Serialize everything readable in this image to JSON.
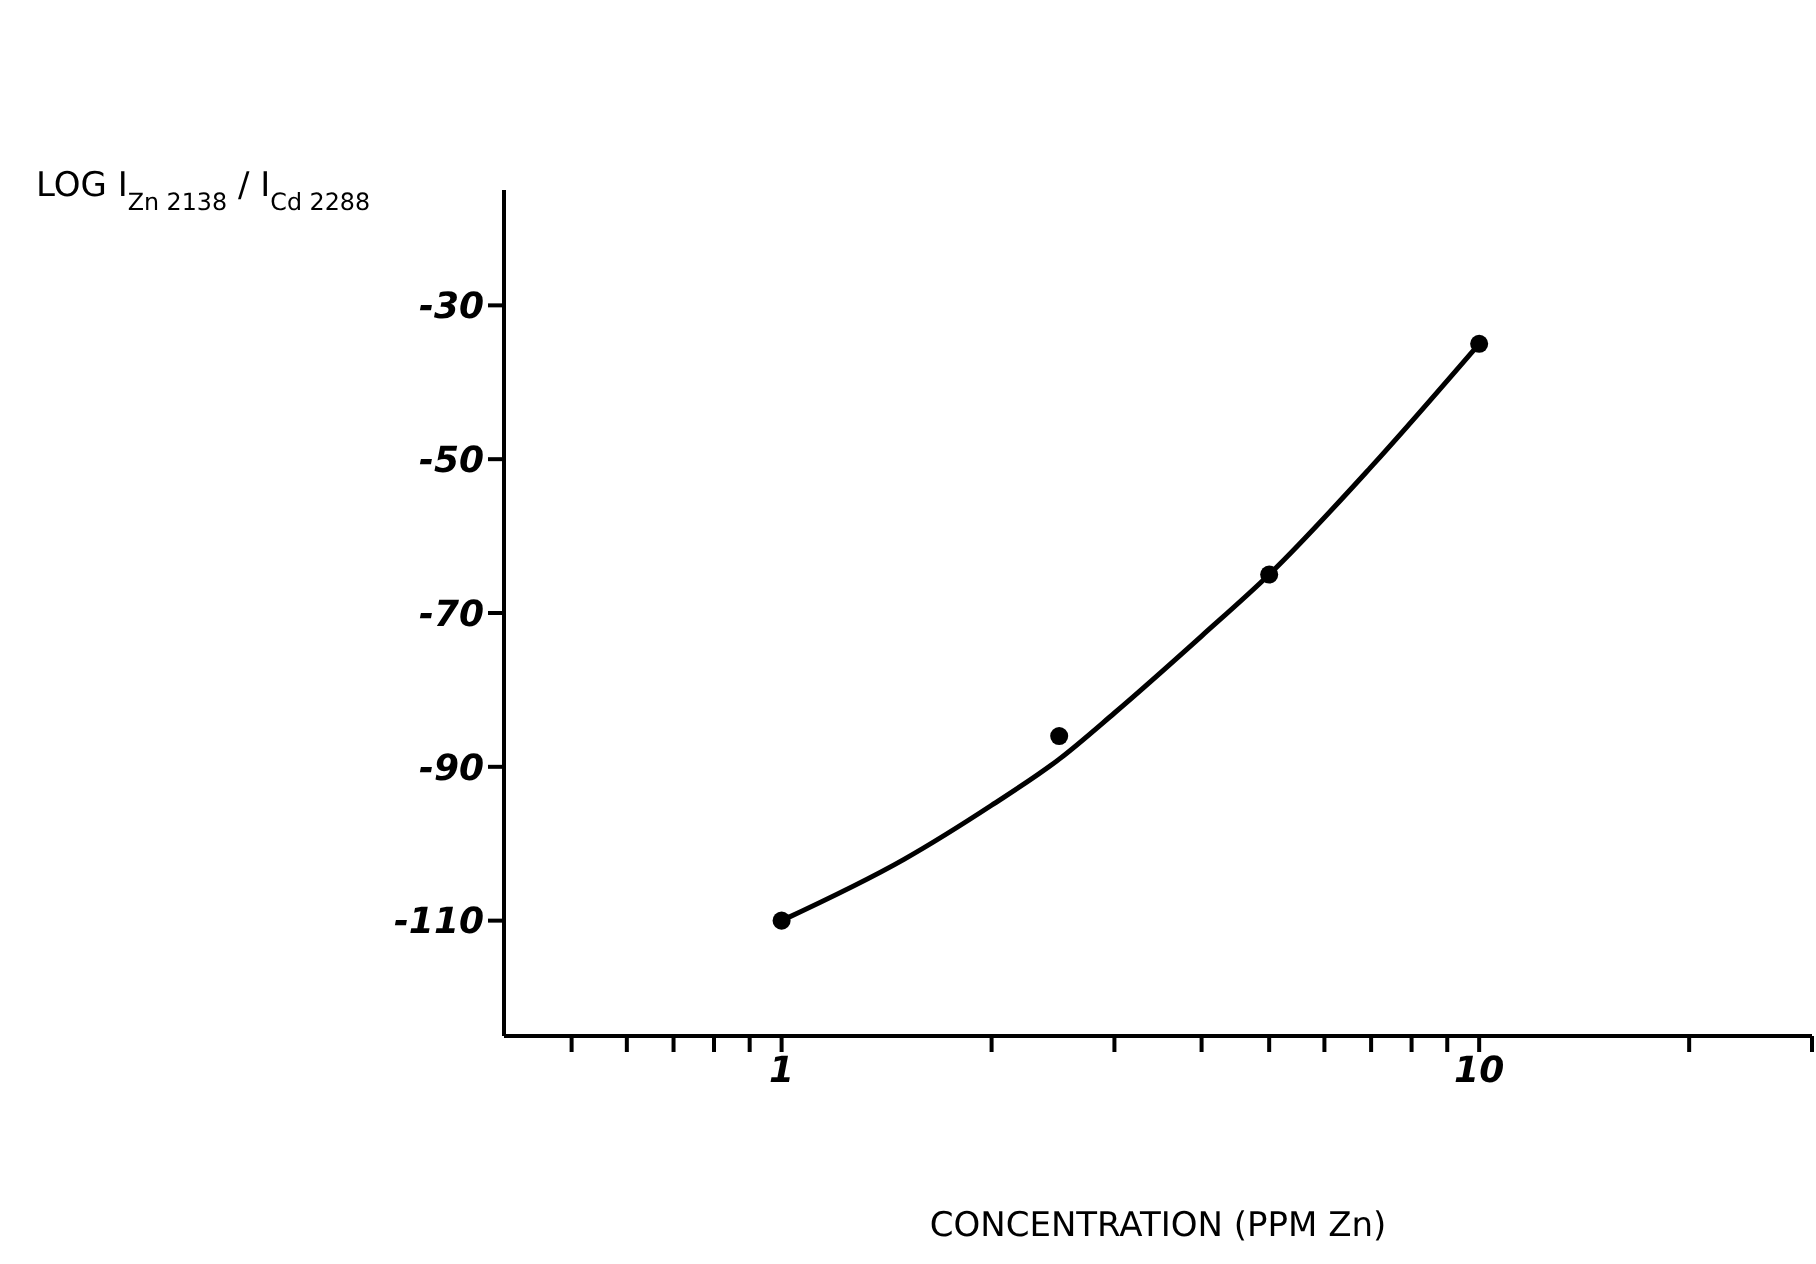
{
  "chart_data": {
    "type": "scatter",
    "xlabel": "CONCENTRATION (PPM Zn)",
    "ylabel": "LOG I$_{Zn 2138}$ / I$_{Cd 2288}$",
    "log": "x",
    "grid": false,
    "xlim": [
      0.4,
      30
    ],
    "xticks": [
      {
        "value": 0.5,
        "label": null
      },
      {
        "value": 0.6,
        "label": null
      },
      {
        "value": 0.7,
        "label": null
      },
      {
        "value": 0.8,
        "label": null
      },
      {
        "value": 0.9,
        "label": null
      },
      1,
      {
        "value": 2,
        "label": null
      },
      {
        "value": 3,
        "label": null
      },
      {
        "value": 4,
        "label": null
      },
      {
        "value": 5,
        "label": null
      },
      {
        "value": 6,
        "label": null
      },
      {
        "value": 7,
        "label": null
      },
      {
        "value": 8,
        "label": null
      },
      {
        "value": 9,
        "label": null
      },
      10,
      {
        "value": 20,
        "label": null
      },
      {
        "value": 30,
        "label": null
      }
    ],
    "ylim": [
      -125,
      -15
    ],
    "yticks": [
      -110,
      -90,
      -70,
      -50,
      -30
    ],
    "series": [
      {
        "x": [
          1,
          2.5,
          5,
          10
        ],
        "values": [
          -110,
          -86,
          -65,
          -35
        ],
        "color": "#000000",
        "marker": "circle"
      },
      {
        "type": "line",
        "x": [
          1,
          1.5,
          2,
          2.5,
          3,
          4,
          5,
          7,
          10
        ],
        "values": [
          -110,
          -102,
          -95,
          -89,
          -83,
          -73,
          -65,
          -51,
          -35
        ],
        "color": "#000000",
        "marker": "none"
      }
    ]
  }
}
